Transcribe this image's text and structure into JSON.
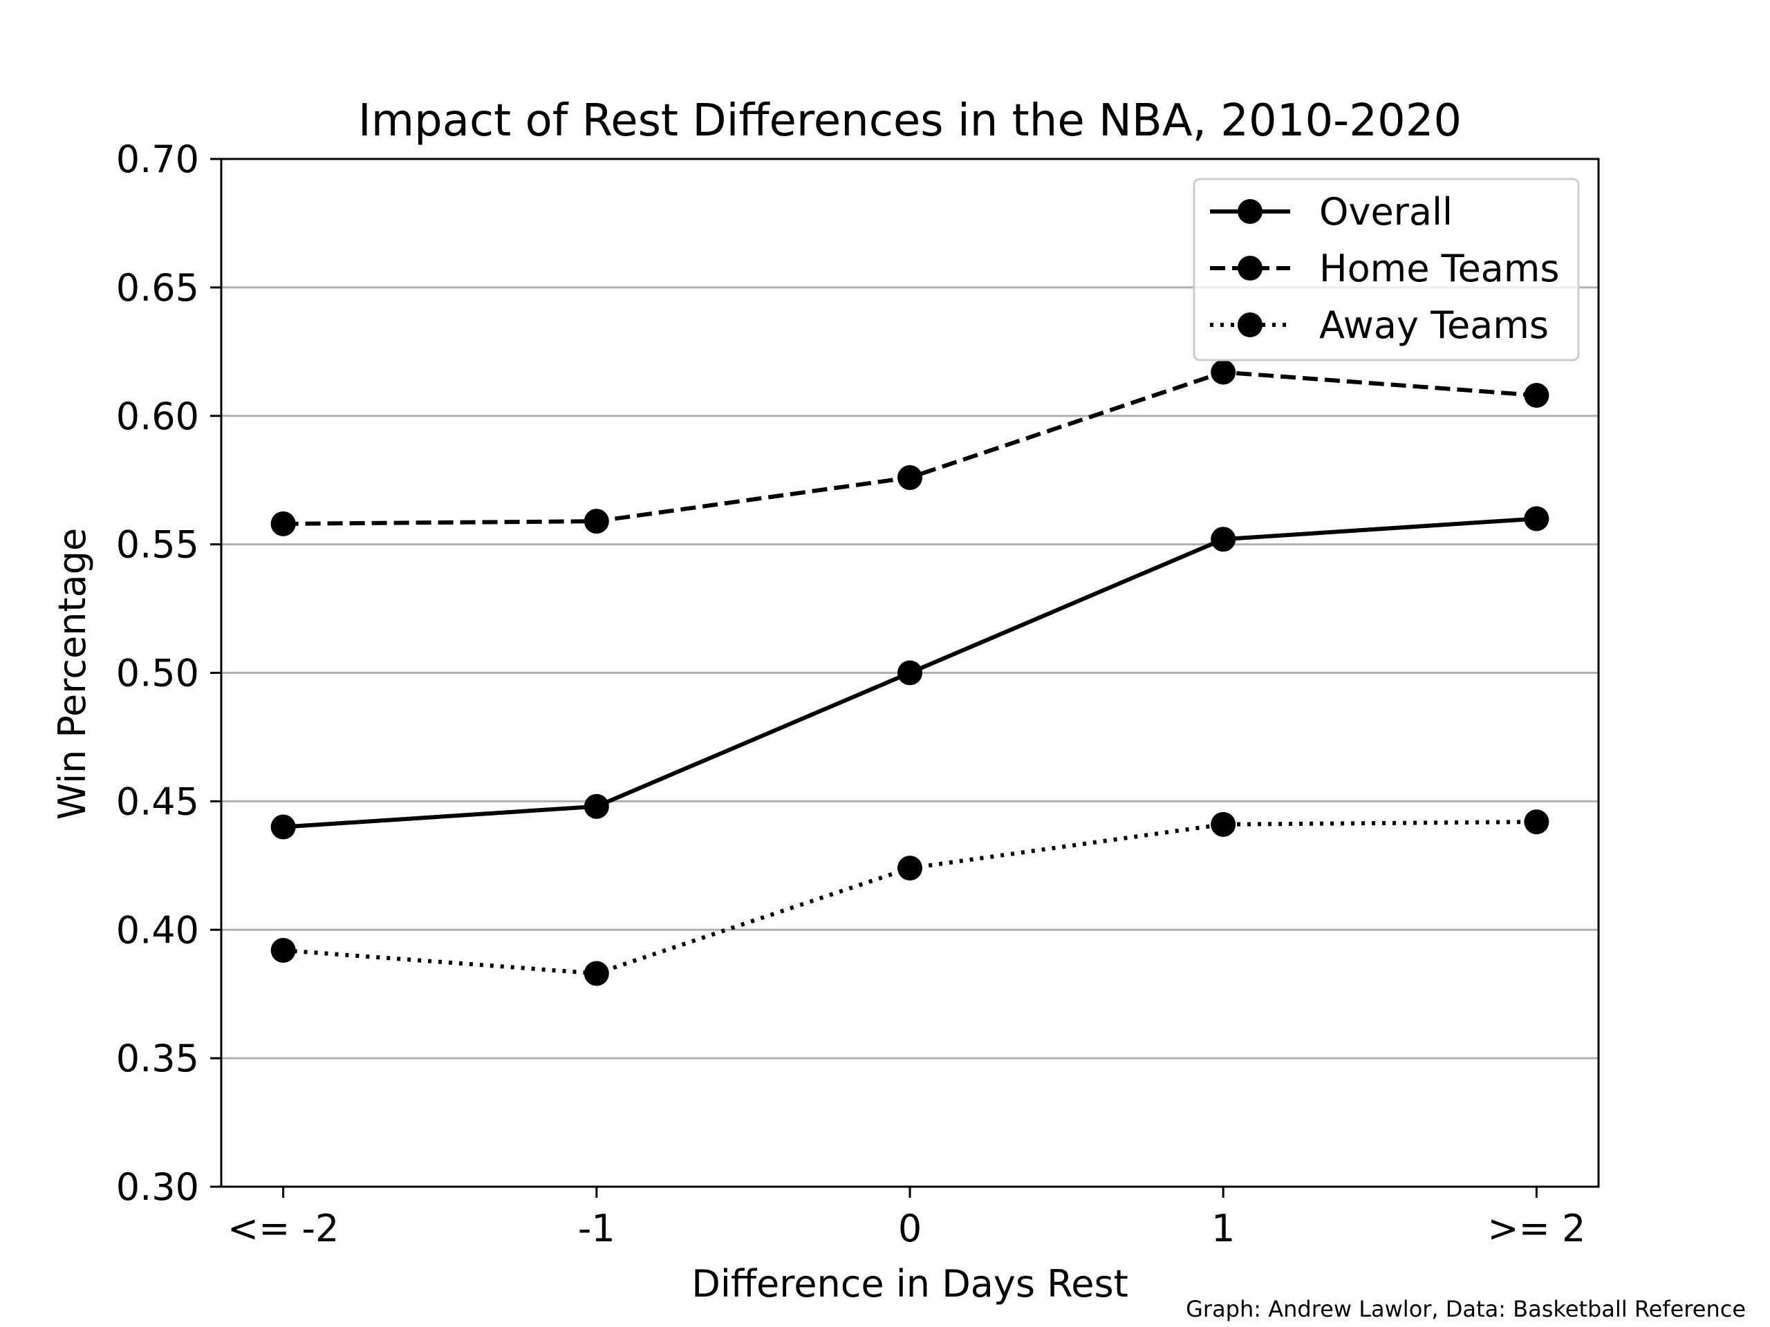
{
  "chart_data": {
    "type": "line",
    "title": "Impact of Rest Differences in the NBA, 2010-2020",
    "xlabel": "Difference in Days Rest",
    "ylabel": "Win Percentage",
    "categories": [
      "<= -2",
      "-1",
      "0",
      "1",
      ">= 2"
    ],
    "ylim": [
      0.3,
      0.7
    ],
    "yticks": [
      "0.30",
      "0.35",
      "0.40",
      "0.45",
      "0.50",
      "0.55",
      "0.60",
      "0.65",
      "0.70"
    ],
    "grid": "horizontal",
    "legend": "top-right",
    "series": [
      {
        "name": "Overall",
        "linestyle": "solid",
        "values": [
          0.44,
          0.448,
          0.5,
          0.552,
          0.56
        ]
      },
      {
        "name": "Home Teams",
        "linestyle": "dashed",
        "values": [
          0.558,
          0.559,
          0.576,
          0.617,
          0.608
        ]
      },
      {
        "name": "Away Teams",
        "linestyle": "dotted",
        "values": [
          0.392,
          0.383,
          0.424,
          0.441,
          0.442
        ]
      }
    ],
    "credit": "Graph: Andrew Lawlor, Data: Basketball Reference"
  },
  "colors": {
    "line": "#000000",
    "grid": "#b0b0b0",
    "legend_border": "#cccccc"
  }
}
